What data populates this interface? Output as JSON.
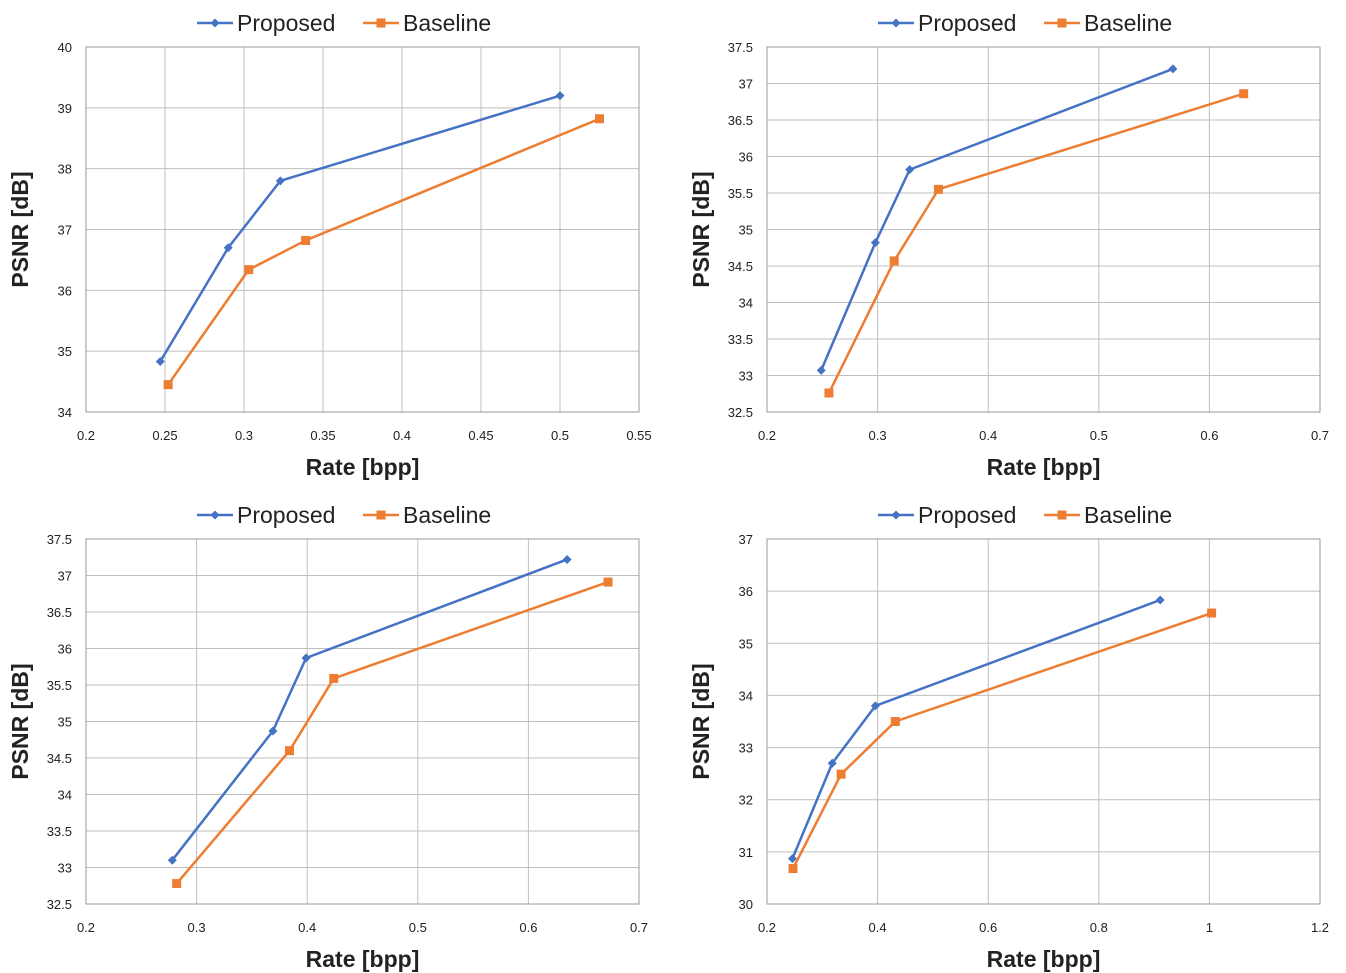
{
  "chart_data": [
    {
      "type": "line",
      "xlabel": "Rate [bpp]",
      "ylabel": "PSNR [dB]",
      "xlim": [
        0.2,
        0.55
      ],
      "ylim": [
        34,
        40
      ],
      "xticks": [
        "0.2",
        "0.25",
        "0.3",
        "0.35",
        "0.4",
        "0.45",
        "0.5",
        "0.55"
      ],
      "yticks": [
        "34",
        "35",
        "36",
        "37",
        "38",
        "39",
        "40"
      ],
      "grid": true,
      "legend": "top-center",
      "series": [
        {
          "name": "Proposed",
          "color": "#4472c4",
          "marker": "diamond",
          "x": [
            0.247,
            0.29,
            0.323,
            0.5
          ],
          "y": [
            34.83,
            36.7,
            37.8,
            39.2
          ]
        },
        {
          "name": "Baseline",
          "color": "#ed7d31",
          "marker": "square",
          "x": [
            0.252,
            0.303,
            0.339,
            0.525
          ],
          "y": [
            34.45,
            36.34,
            36.82,
            38.82
          ]
        }
      ]
    },
    {
      "type": "line",
      "xlabel": "Rate [bpp]",
      "ylabel": "PSNR [dB]",
      "xlim": [
        0.2,
        0.7
      ],
      "ylim": [
        32.5,
        37.5
      ],
      "xticks": [
        "0.2",
        "0.3",
        "0.4",
        "0.5",
        "0.6",
        "0.7"
      ],
      "yticks": [
        "32.5",
        "33",
        "33.5",
        "34",
        "34.5",
        "35",
        "35.5",
        "36",
        "36.5",
        "37",
        "37.5"
      ],
      "grid": true,
      "legend": "top-center",
      "series": [
        {
          "name": "Proposed",
          "color": "#4472c4",
          "marker": "diamond",
          "x": [
            0.249,
            0.298,
            0.329,
            0.567
          ],
          "y": [
            33.07,
            34.82,
            35.82,
            37.2
          ]
        },
        {
          "name": "Baseline",
          "color": "#ed7d31",
          "marker": "square",
          "x": [
            0.256,
            0.315,
            0.355,
            0.631
          ],
          "y": [
            32.76,
            34.57,
            35.55,
            36.86
          ]
        }
      ]
    },
    {
      "type": "line",
      "xlabel": "Rate [bpp]",
      "ylabel": "PSNR [dB]",
      "xlim": [
        0.2,
        0.7
      ],
      "ylim": [
        32.5,
        37.5
      ],
      "xticks": [
        "0.2",
        "0.3",
        "0.4",
        "0.5",
        "0.6",
        "0.7"
      ],
      "yticks": [
        "32.5",
        "33",
        "33.5",
        "34",
        "34.5",
        "35",
        "35.5",
        "36",
        "36.5",
        "37",
        "37.5"
      ],
      "grid": true,
      "legend": "top-center",
      "series": [
        {
          "name": "Proposed",
          "color": "#4472c4",
          "marker": "diamond",
          "x": [
            0.278,
            0.369,
            0.399,
            0.635
          ],
          "y": [
            33.1,
            34.87,
            35.87,
            37.22
          ]
        },
        {
          "name": "Baseline",
          "color": "#ed7d31",
          "marker": "square",
          "x": [
            0.282,
            0.384,
            0.424,
            0.672
          ],
          "y": [
            32.78,
            34.6,
            35.59,
            36.91
          ]
        }
      ]
    },
    {
      "type": "line",
      "xlabel": "Rate [bpp]",
      "ylabel": "PSNR [dB]",
      "xlim": [
        0.2,
        1.2
      ],
      "ylim": [
        30,
        37
      ],
      "xticks": [
        "0.2",
        "0.4",
        "0.6",
        "0.8",
        "1",
        "1.2"
      ],
      "yticks": [
        "30",
        "31",
        "32",
        "33",
        "34",
        "35",
        "36",
        "37"
      ],
      "grid": true,
      "legend": "top-center",
      "series": [
        {
          "name": "Proposed",
          "color": "#4472c4",
          "marker": "diamond",
          "x": [
            0.246,
            0.318,
            0.396,
            0.911
          ],
          "y": [
            30.87,
            32.7,
            33.8,
            35.83
          ]
        },
        {
          "name": "Baseline",
          "color": "#ed7d31",
          "marker": "square",
          "x": [
            0.247,
            0.334,
            0.432,
            1.004
          ],
          "y": [
            30.68,
            32.49,
            33.5,
            35.58
          ]
        }
      ]
    }
  ]
}
